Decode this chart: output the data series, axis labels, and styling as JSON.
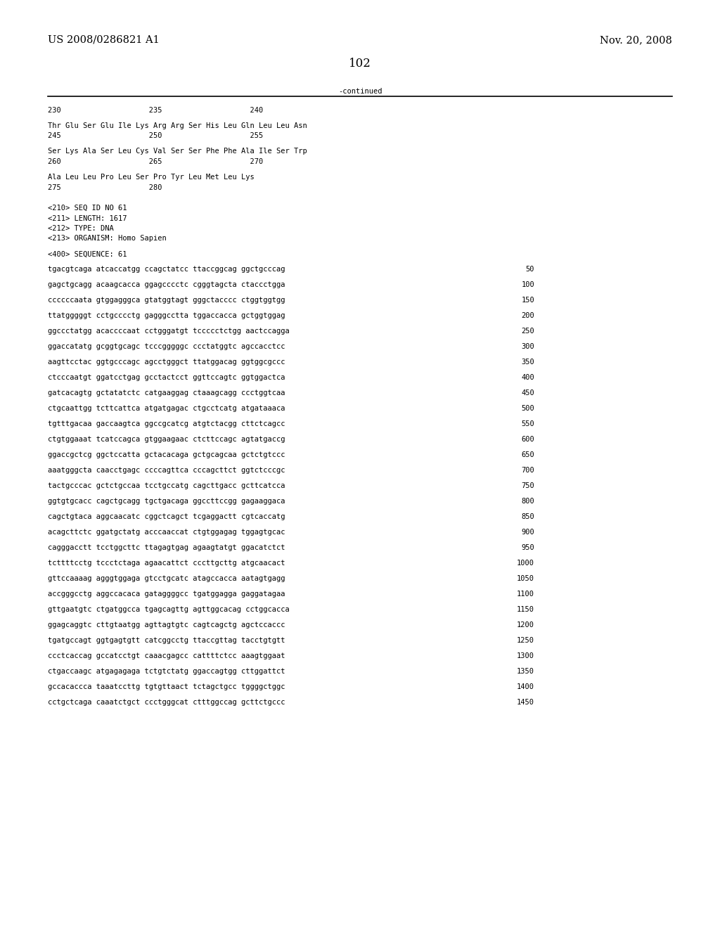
{
  "header_left": "US 2008/0286821 A1",
  "header_right": "Nov. 20, 2008",
  "page_number": "102",
  "continued_label": "-continued",
  "background_color": "#ffffff",
  "text_color": "#000000",
  "mono_font_size": 7.5,
  "header_font_size": 10.5,
  "page_num_font_size": 12.0,
  "content_lines": [
    [
      "230                    235                    240",
      ""
    ],
    [
      "",
      ""
    ],
    [
      "Thr Glu Ser Glu Ile Lys Arg Arg Ser His Leu Gln Leu Leu Asn",
      ""
    ],
    [
      "245                    250                    255",
      ""
    ],
    [
      "",
      ""
    ],
    [
      "Ser Lys Ala Ser Leu Cys Val Ser Ser Phe Phe Ala Ile Ser Trp",
      ""
    ],
    [
      "260                    265                    270",
      ""
    ],
    [
      "",
      ""
    ],
    [
      "Ala Leu Leu Pro Leu Ser Pro Tyr Leu Met Leu Lys",
      ""
    ],
    [
      "275                    280",
      ""
    ],
    [
      "",
      ""
    ],
    [
      "",
      ""
    ],
    [
      "<210> SEQ ID NO 61",
      ""
    ],
    [
      "<211> LENGTH: 1617",
      ""
    ],
    [
      "<212> TYPE: DNA",
      ""
    ],
    [
      "<213> ORGANISM: Homo Sapien",
      ""
    ],
    [
      "",
      ""
    ],
    [
      "<400> SEQUENCE: 61",
      ""
    ],
    [
      "",
      ""
    ],
    [
      "tgacgtcaga atcaccatgg ccagctatcc ttaccggcag ggctgcccag",
      "50"
    ],
    [
      "",
      ""
    ],
    [
      "gagctgcagg acaagcacca ggagcccctc cgggtagcta ctaccctgga",
      "100"
    ],
    [
      "",
      ""
    ],
    [
      "ccccccaata gtggagggca gtatggtagt gggctacccc ctggtggtgg",
      "150"
    ],
    [
      "",
      ""
    ],
    [
      "ttatgggggt cctgcccctg gagggcctta tggaccacca gctggtggag",
      "200"
    ],
    [
      "",
      ""
    ],
    [
      "ggccctatgg acaccccaat cctgggatgt tccccctctgg aactccagga",
      "250"
    ],
    [
      "",
      ""
    ],
    [
      "ggaccatatg gcggtgcagc tcccgggggc ccctatggtc agccacctcc",
      "300"
    ],
    [
      "",
      ""
    ],
    [
      "aagttcctac ggtgcccagc agcctgggct ttatggacag ggtggcgccc",
      "350"
    ],
    [
      "",
      ""
    ],
    [
      "ctcccaatgt ggatcctgag gcctactcct ggttccagtc ggtggactca",
      "400"
    ],
    [
      "",
      ""
    ],
    [
      "gatcacagtg gctatatctc catgaaggag ctaaagcagg ccctggtcaa",
      "450"
    ],
    [
      "",
      ""
    ],
    [
      "ctgcaattgg tcttcattca atgatgagac ctgcctcatg atgataaaca",
      "500"
    ],
    [
      "",
      ""
    ],
    [
      "tgtttgacaa gaccaagtca ggccgcatcg atgtctacgg cttctcagcc",
      "550"
    ],
    [
      "",
      ""
    ],
    [
      "ctgtggaaat tcatccagca gtggaagaac ctcttccagc agtatgaccg",
      "600"
    ],
    [
      "",
      ""
    ],
    [
      "ggaccgctcg ggctccatta gctacacaga gctgcagcaa gctctgtccc",
      "650"
    ],
    [
      "",
      ""
    ],
    [
      "aaatgggcta caacctgagc ccccagttca cccagcttct ggtctcccgc",
      "700"
    ],
    [
      "",
      ""
    ],
    [
      "tactgcccac gctctgccaa tcctgccatg cagcttgacc gcttcatcca",
      "750"
    ],
    [
      "",
      ""
    ],
    [
      "ggtgtgcacc cagctgcagg tgctgacaga ggccttccgg gagaaggaca",
      "800"
    ],
    [
      "",
      ""
    ],
    [
      "cagctgtaca aggcaacatc cggctcagct tcgaggactt cgtcaccatg",
      "850"
    ],
    [
      "",
      ""
    ],
    [
      "acagcttctc ggatgctatg acccaaccat ctgtggagag tggagtgcac",
      "900"
    ],
    [
      "",
      ""
    ],
    [
      "cagggacctt tcctggcttc ttagagtgag agaagtatgt ggacatctct",
      "950"
    ],
    [
      "",
      ""
    ],
    [
      "tcttttcctg tccctctaga agaacattct cccttgcttg atgcaacact",
      "1000"
    ],
    [
      "",
      ""
    ],
    [
      "gttccaaaag agggtggaga gtcctgcatc atagccacca aatagtgagg",
      "1050"
    ],
    [
      "",
      ""
    ],
    [
      "accgggcctg aggccacaca gataggggcc tgatggagga gaggatagaa",
      "1100"
    ],
    [
      "",
      ""
    ],
    [
      "gttgaatgtc ctgatggcca tgagcagttg agttggcacag cctggcacca",
      "1150"
    ],
    [
      "",
      ""
    ],
    [
      "ggagcaggtc cttgtaatgg agttagtgtc cagtcagctg agctccaccc",
      "1200"
    ],
    [
      "",
      ""
    ],
    [
      "tgatgccagt ggtgagtgtt catcggcctg ttaccgttag tacctgtgtt",
      "1250"
    ],
    [
      "",
      ""
    ],
    [
      "ccctcaccag gccatcctgt caaacgagcc cattttctcc aaagtggaat",
      "1300"
    ],
    [
      "",
      ""
    ],
    [
      "ctgaccaagc atgagagaga tctgtctatg ggaccagtgg cttggattct",
      "1350"
    ],
    [
      "",
      ""
    ],
    [
      "gccacaccca taaatccttg tgtgttaact tctagctgcc tggggctggc",
      "1400"
    ],
    [
      "",
      ""
    ],
    [
      "cctgctcaga caaatctgct ccctgggcat ctttggccag gcttctgccc",
      "1450"
    ]
  ]
}
